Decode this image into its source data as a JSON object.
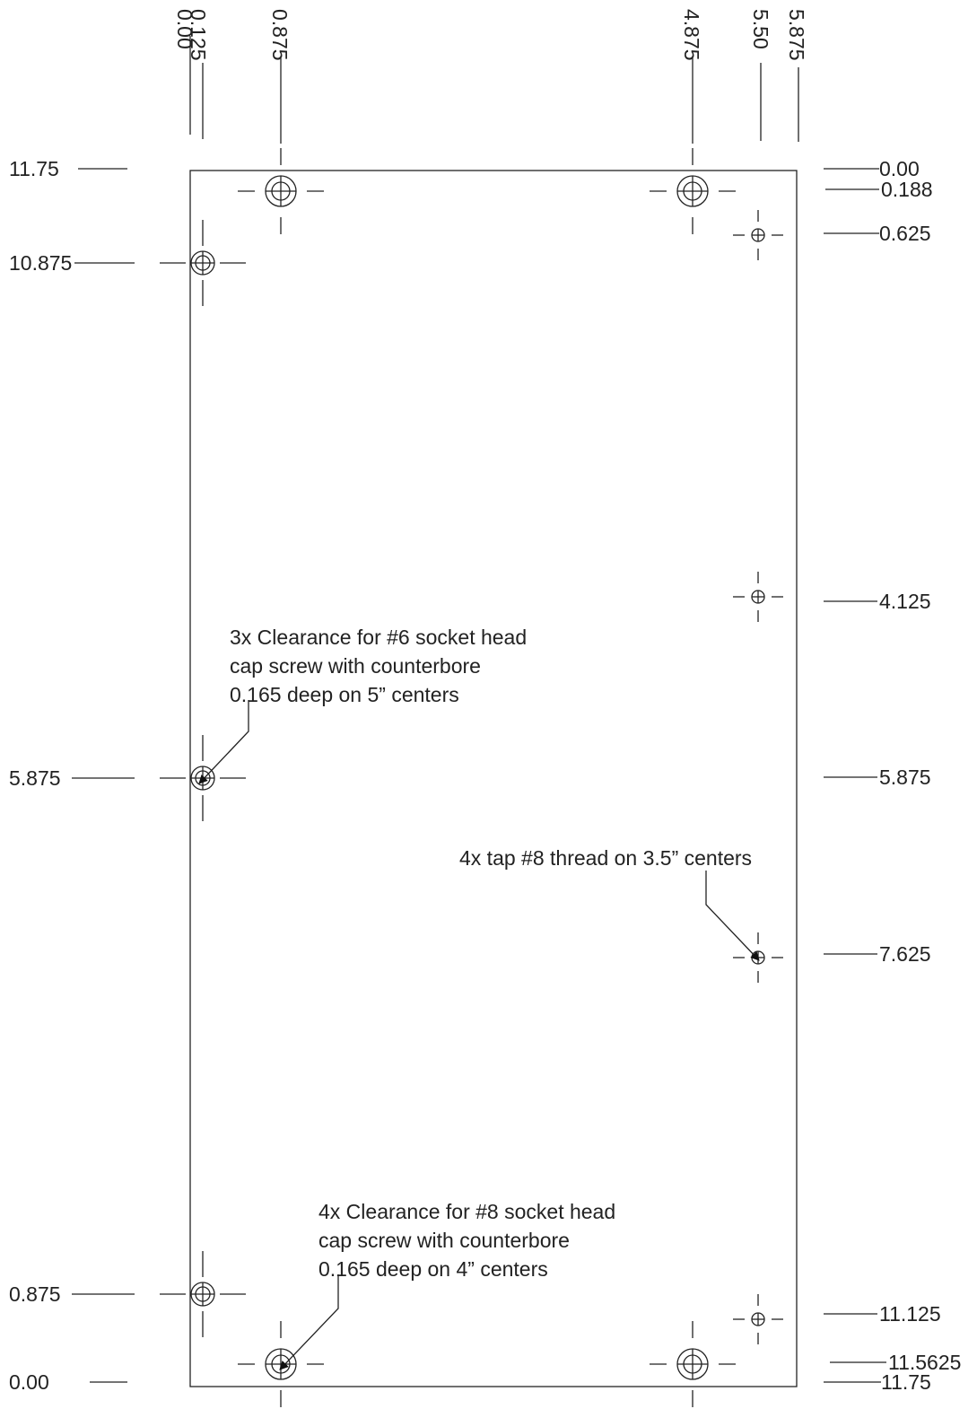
{
  "top_labels": [
    "0.00",
    "0.125",
    "0.875",
    "4.875",
    "5.50",
    "5.875"
  ],
  "left_labels": [
    "11.75",
    "10.875",
    "5.875",
    "0.875",
    "0.00"
  ],
  "right_labels": [
    "0.00",
    "0.188",
    "0.625",
    "4.125",
    "5.875",
    "7.625",
    "11.125",
    "11.5625",
    "11.75"
  ],
  "notes": [
    {
      "lines": [
        "3x Clearance for #6 socket head",
        "cap screw with counterbore",
        "0.165 deep on 5” centers"
      ]
    },
    {
      "lines": [
        "4x tap #8 thread on 3.5” centers"
      ]
    },
    {
      "lines": [
        "4x Clearance for #8 socket head",
        "cap screw with counterbore",
        "0.165 deep on 4” centers"
      ]
    }
  ]
}
